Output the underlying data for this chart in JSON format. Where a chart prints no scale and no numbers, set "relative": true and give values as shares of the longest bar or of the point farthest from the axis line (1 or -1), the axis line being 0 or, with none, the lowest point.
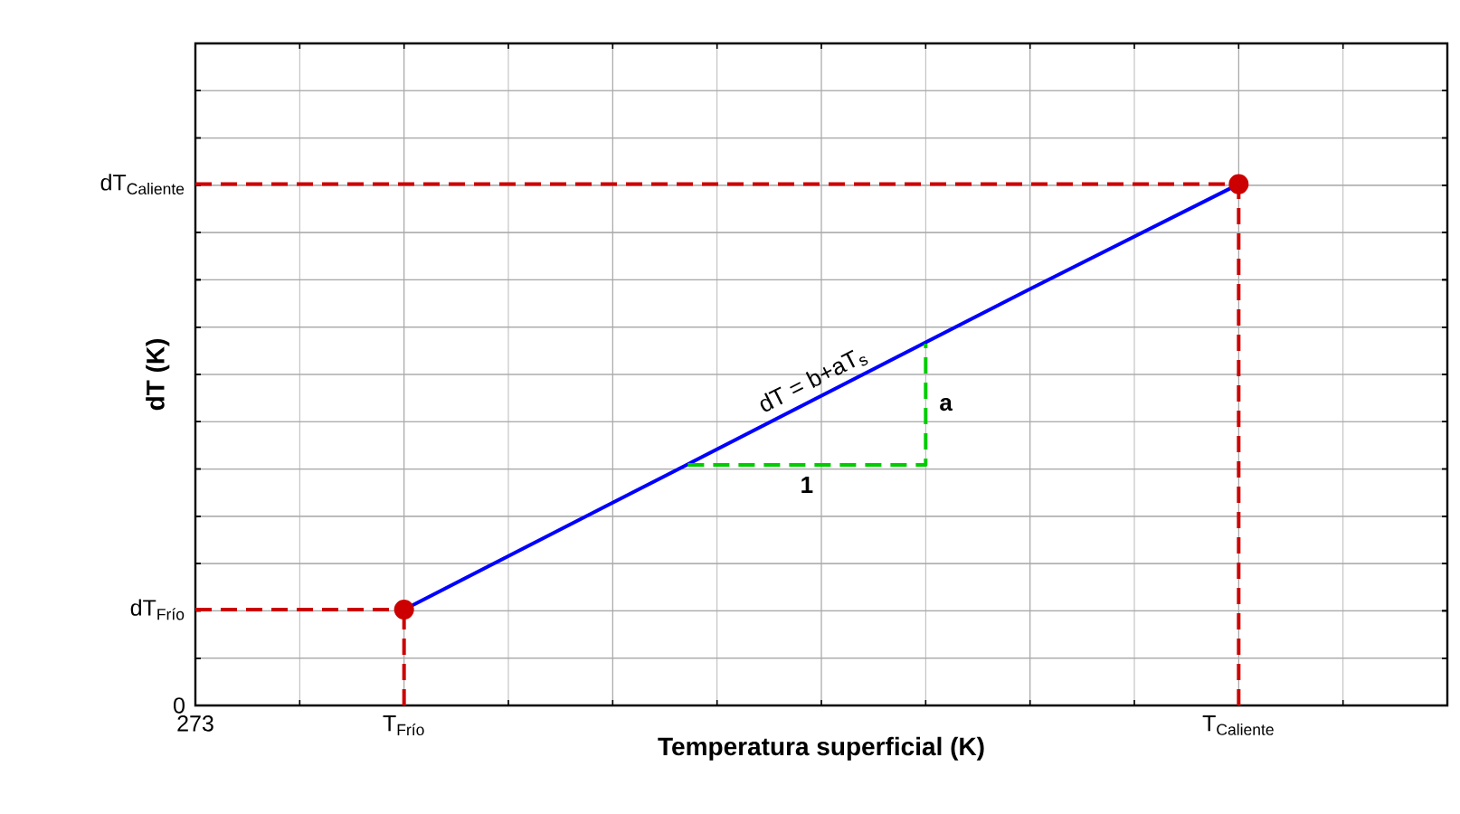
{
  "chart_data": {
    "type": "line",
    "relative": true,
    "xlabel": "Temperatura superficial (K)",
    "ylabel": "dT (K)",
    "categories": [
      "273",
      "T$_{Frío}$",
      null,
      null,
      null,
      "T$_{Caliente}$",
      null
    ],
    "grid": true,
    "series": [
      {
        "color": "#0000ff",
        "values": [
          null,
          0.184,
          0.389,
          0.594,
          0.799,
          1,
          null
        ],
        "line_style": "solid",
        "marker": "none"
      },
      {
        "color": "#cc0000",
        "values": [
          0.184,
          0.184,
          null,
          null,
          null,
          null,
          null
        ],
        "line_style": "dashed",
        "marker": "none"
      },
      {
        "color": "#cc0000",
        "values": [
          1,
          1,
          1,
          1,
          1,
          1,
          null
        ],
        "line_style": "dashed",
        "marker": "none"
      },
      {
        "type": "lollipop",
        "color": "#cc0000",
        "values": [
          null,
          0.184,
          null,
          null,
          null,
          1,
          null
        ],
        "line_style": "dashed",
        "marker": "circle"
      }
    ],
    "annotations": [
      "dT = b+aT$_{s}$",
      "a",
      "1",
      "0",
      "dT$_{Frío}$",
      "dT$_{Caliente}$"
    ]
  }
}
